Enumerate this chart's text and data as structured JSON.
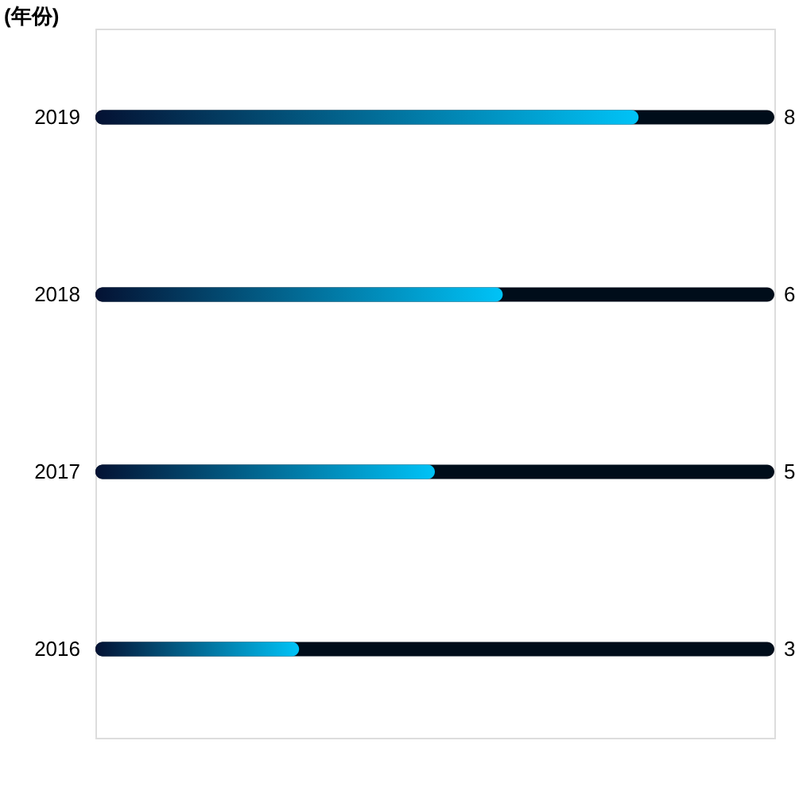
{
  "chart_data": {
    "type": "bar",
    "orientation": "horizontal",
    "ylabel": "(年份)",
    "categories": [
      "2019",
      "2018",
      "2017",
      "2016"
    ],
    "values": [
      8,
      6,
      5,
      3
    ],
    "color": "#00c3f7",
    "xlim": [
      0,
      10
    ],
    "data_labels": true,
    "tick_labels": "y"
  }
}
